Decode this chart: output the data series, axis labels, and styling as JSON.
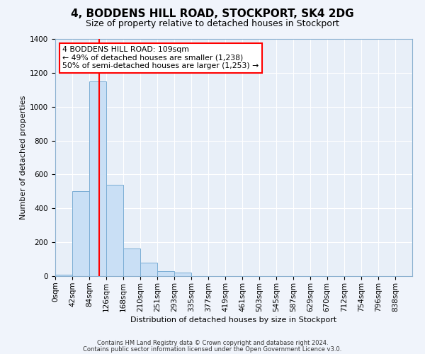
{
  "title": "4, BODDENS HILL ROAD, STOCKPORT, SK4 2DG",
  "subtitle": "Size of property relative to detached houses in Stockport",
  "xlabel": "Distribution of detached houses by size in Stockport",
  "ylabel": "Number of detached properties",
  "bar_labels": [
    "0sqm",
    "42sqm",
    "84sqm",
    "126sqm",
    "168sqm",
    "210sqm",
    "251sqm",
    "293sqm",
    "335sqm",
    "377sqm",
    "419sqm",
    "461sqm",
    "503sqm",
    "545sqm",
    "587sqm",
    "629sqm",
    "670sqm",
    "712sqm",
    "754sqm",
    "796sqm",
    "838sqm"
  ],
  "bar_values": [
    10,
    500,
    1150,
    540,
    165,
    80,
    30,
    20,
    0,
    0,
    0,
    0,
    0,
    0,
    0,
    0,
    0,
    0,
    0,
    0,
    0
  ],
  "bar_color": "#c9dff5",
  "bar_edge_color": "#7aadd4",
  "ylim": [
    0,
    1400
  ],
  "yticks": [
    0,
    200,
    400,
    600,
    800,
    1000,
    1200,
    1400
  ],
  "red_line_x": 109,
  "bin_width": 42,
  "annotation_title": "4 BODDENS HILL ROAD: 109sqm",
  "annotation_line1": "← 49% of detached houses are smaller (1,238)",
  "annotation_line2": "50% of semi-detached houses are larger (1,253) →",
  "footer1": "Contains HM Land Registry data © Crown copyright and database right 2024.",
  "footer2": "Contains public sector information licensed under the Open Government Licence v3.0.",
  "background_color": "#f0f4fb",
  "plot_bg_color": "#e8eff8",
  "grid_color": "#ffffff",
  "title_fontsize": 11,
  "subtitle_fontsize": 9,
  "axis_label_fontsize": 8,
  "tick_fontsize": 7.5,
  "annotation_fontsize": 7.8,
  "footer_fontsize": 6
}
